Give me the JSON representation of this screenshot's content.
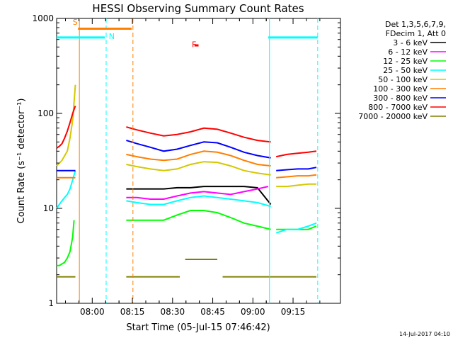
{
  "chart_data": {
    "type": "line",
    "title": "HESSI Observing Summary Count Rates",
    "xlabel": "Start Time (05-Jul-15 07:46:42)",
    "ylabel": "Count Rate (s⁻¹ detector⁻¹)",
    "footer": "14-Jul-2017 04:10",
    "x_axis": {
      "unit": "minutes after 07:46:42",
      "range": [
        0,
        106
      ],
      "ticks": [
        {
          "x": 13.3,
          "label": "08:00"
        },
        {
          "x": 28.3,
          "label": "08:15"
        },
        {
          "x": 43.3,
          "label": "08:30"
        },
        {
          "x": 58.3,
          "label": "08:45"
        },
        {
          "x": 73.3,
          "label": "09:00"
        },
        {
          "x": 88.3,
          "label": "09:15"
        }
      ]
    },
    "y_axis": {
      "scale": "log",
      "range": [
        1,
        1000
      ],
      "ticks": [
        {
          "v": 1,
          "label": "1"
        },
        {
          "v": 10,
          "label": "10"
        },
        {
          "v": 100,
          "label": "100"
        },
        {
          "v": 1000,
          "label": "1000"
        }
      ]
    },
    "legend": {
      "placement": "right",
      "header": [
        "Det 1,3,5,6,7,9,",
        "FDecim 1, Att 0"
      ]
    },
    "series": [
      {
        "name": "3 - 6 keV",
        "color": "#000000",
        "segments": [
          {
            "x": [
              26,
              30,
              35,
              40,
              45,
              50,
              55,
              60,
              65,
              70,
              75,
              80
            ],
            "y": [
              16,
              16,
              16,
              16,
              16.5,
              16.5,
              17,
              17,
              17,
              17,
              16.5,
              11
            ]
          }
        ]
      },
      {
        "name": "6 - 12 keV",
        "color": "#ff00ff",
        "segments": [
          {
            "x": [
              26,
              30,
              35,
              40,
              45,
              50,
              55,
              60,
              65,
              70,
              75,
              79
            ],
            "y": [
              13,
              13,
              12.5,
              12.5,
              13.5,
              14.5,
              15,
              14.5,
              14,
              15,
              16,
              17
            ]
          }
        ]
      },
      {
        "name": "12 - 25 keV",
        "color": "#00ff00",
        "segments": [
          {
            "x": [
              0,
              1,
              2,
              3,
              4,
              5,
              6,
              6.5
            ],
            "y": [
              2.5,
              2.5,
              2.6,
              2.7,
              3,
              3.5,
              5,
              7.5
            ]
          },
          {
            "x": [
              26,
              30,
              35,
              40,
              45,
              50,
              55,
              60,
              65,
              70,
              75,
              80
            ],
            "y": [
              7.5,
              7.5,
              7.5,
              7.5,
              8.5,
              9.5,
              9.5,
              9,
              8,
              7,
              6.5,
              6
            ]
          },
          {
            "x": [
              82,
              86,
              90,
              94,
              97
            ],
            "y": [
              6,
              6,
              6,
              6,
              6.5
            ]
          }
        ]
      },
      {
        "name": "25 - 50 keV",
        "color": "#00ffff",
        "segments": [
          {
            "x": [
              0,
              1,
              2,
              3,
              4,
              5,
              6,
              7
            ],
            "y": [
              10,
              11,
              12,
              13,
              14,
              16,
              20,
              25
            ]
          },
          {
            "x": [
              26,
              30,
              35,
              40,
              45,
              50,
              55,
              60,
              65,
              70,
              75,
              80
            ],
            "y": [
              12,
              11.5,
              11,
              11,
              12,
              13,
              13.5,
              13,
              12.5,
              12,
              11.5,
              10.5
            ]
          },
          {
            "x": [
              82,
              86,
              90,
              94,
              97
            ],
            "y": [
              5.5,
              6,
              6,
              6.5,
              7
            ]
          }
        ]
      },
      {
        "name": "50 - 100 keV",
        "color": "#d4c800",
        "segments": [
          {
            "x": [
              0,
              2,
              4,
              5,
              6,
              6.5,
              7
            ],
            "y": [
              28,
              32,
              40,
              55,
              85,
              130,
              200
            ]
          },
          {
            "x": [
              26,
              30,
              35,
              40,
              45,
              50,
              55,
              60,
              65,
              70,
              75,
              80
            ],
            "y": [
              29,
              27.5,
              26,
              25,
              26,
              29,
              31,
              30.5,
              28,
              25,
              23.5,
              22.5
            ]
          },
          {
            "x": [
              82,
              86,
              90,
              94,
              97
            ],
            "y": [
              17,
              17,
              17.5,
              18,
              18
            ]
          }
        ]
      },
      {
        "name": "100 - 300 keV",
        "color": "#ff7f00",
        "segments": [
          {
            "x": [
              0,
              2,
              4,
              6,
              7
            ],
            "y": [
              21,
              21,
              21,
              21,
              21
            ]
          },
          {
            "x": [
              26,
              30,
              35,
              40,
              45,
              50,
              55,
              60,
              65,
              70,
              75,
              80
            ],
            "y": [
              37,
              35,
              33,
              32,
              33,
              37,
              40,
              39,
              36,
              32,
              29,
              28
            ]
          },
          {
            "x": [
              82,
              86,
              90,
              94,
              97
            ],
            "y": [
              21,
              21.5,
              22,
              22,
              22.5
            ]
          }
        ]
      },
      {
        "name": "300 - 800 keV",
        "color": "#0000ff",
        "segments": [
          {
            "x": [
              0,
              2,
              4,
              6,
              7
            ],
            "y": [
              25,
              25,
              25,
              25,
              25
            ]
          },
          {
            "x": [
              26,
              30,
              35,
              40,
              45,
              50,
              55,
              60,
              65,
              70,
              75,
              80
            ],
            "y": [
              52,
              48,
              44,
              40,
              42,
              46,
              50,
              49,
              44,
              39,
              36,
              34
            ]
          },
          {
            "x": [
              82,
              86,
              90,
              94,
              97
            ],
            "y": [
              25,
              25.5,
              26,
              26,
              27
            ]
          }
        ]
      },
      {
        "name": "800 - 7000 keV",
        "color": "#ff0000",
        "segments": [
          {
            "x": [
              0,
              1,
              2,
              3,
              4,
              5,
              6,
              7
            ],
            "y": [
              43,
              45,
              48,
              55,
              65,
              80,
              100,
              120
            ]
          },
          {
            "x": [
              26,
              30,
              35,
              40,
              45,
              50,
              55,
              60,
              65,
              70,
              75,
              80
            ],
            "y": [
              72,
              67,
              62,
              58,
              60,
              64,
              70,
              68,
              62,
              56,
              52,
              50
            ]
          },
          {
            "x": [
              82,
              86,
              90,
              94,
              97
            ],
            "y": [
              35,
              37,
              38,
              39,
              40
            ]
          }
        ]
      },
      {
        "name": "7000 - 20000 keV",
        "color": "#808000",
        "segments": [
          {
            "x": [
              0,
              7
            ],
            "y": [
              1.9,
              1.9
            ]
          },
          {
            "x": [
              26,
              46
            ],
            "y": [
              1.9,
              1.9
            ]
          },
          {
            "x": [
              48,
              60
            ],
            "y": [
              2.9,
              2.9
            ]
          },
          {
            "x": [
              62,
              97
            ],
            "y": [
              1.9,
              1.9
            ]
          }
        ]
      }
    ],
    "annotations": [
      {
        "text": "S",
        "color": "#ff7f00"
      },
      {
        "text": "N",
        "color": "#00ffff"
      },
      {
        "text": "F",
        "color": "#ff0000"
      }
    ],
    "state_bars": [
      {
        "label": "S",
        "color": "#ff7f00",
        "x": [
          8,
          28
        ],
        "y": 780
      },
      {
        "label": "N",
        "color": "#00ffff",
        "x": [
          0,
          18
        ],
        "y": 630
      },
      {
        "label": "N",
        "color": "#00ffff",
        "x": [
          79,
          97.5
        ],
        "y": 630
      },
      {
        "label": "F",
        "color": "#ff0000",
        "x": [
          51.5,
          53
        ],
        "y": 520
      }
    ],
    "vertical_markers": [
      {
        "x": 8.5,
        "color": "#ff7f00",
        "style": "solid"
      },
      {
        "x": 18.5,
        "color": "#00ffff",
        "style": "dashed"
      },
      {
        "x": 28.5,
        "color": "#ff7f00",
        "style": "dashed"
      },
      {
        "x": 79.5,
        "color": "#00ffff",
        "style": "solid"
      },
      {
        "x": 97.5,
        "color": "#00ffff",
        "style": "dashed"
      }
    ]
  }
}
